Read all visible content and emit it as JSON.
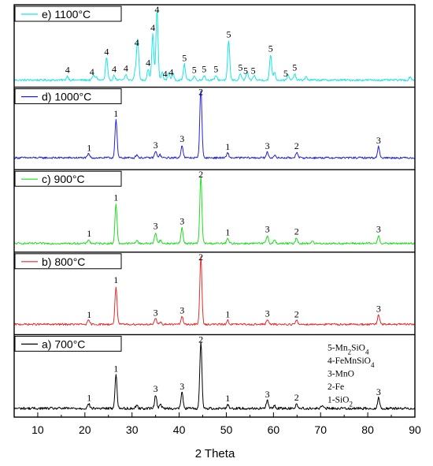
{
  "chart_data": {
    "type": "line",
    "xlabel": "2 Theta",
    "xlim": [
      5,
      90
    ],
    "x_ticks": [
      10,
      20,
      30,
      40,
      50,
      60,
      70,
      80,
      90
    ],
    "key_lines": [
      {
        "num": "5",
        "sep": "-",
        "parts": [
          {
            "t": "Mn"
          },
          {
            "t": "2",
            "sub": true
          },
          {
            "t": "SiO"
          },
          {
            "t": "4",
            "sub": true
          }
        ]
      },
      {
        "num": "4",
        "sep": "-",
        "parts": [
          {
            "t": "FeMnSiO"
          },
          {
            "t": "4",
            "sub": true
          }
        ]
      },
      {
        "num": "3",
        "sep": "-",
        "parts": [
          {
            "t": "MnO"
          }
        ]
      },
      {
        "num": "2",
        "sep": "-",
        "parts": [
          {
            "t": "Fe"
          }
        ]
      },
      {
        "num": "1",
        "sep": "-",
        "parts": [
          {
            "t": "SiO"
          },
          {
            "t": "2",
            "sub": true
          }
        ]
      }
    ],
    "series": [
      {
        "name": "e) 1100°C",
        "color": "#19e6e6",
        "baseline": 0.08,
        "noise": 0.012,
        "peaks": [
          [
            16.3,
            0.05
          ],
          [
            21.8,
            0.06
          ],
          [
            22.4,
            0.04
          ],
          [
            24.6,
            0.28
          ],
          [
            26.2,
            0.06
          ],
          [
            28.7,
            0.07
          ],
          [
            30.7,
            0.12
          ],
          [
            31.2,
            0.52
          ],
          [
            33.4,
            0.14
          ],
          [
            34.4,
            0.58
          ],
          [
            35.3,
            0.88
          ],
          [
            36.4,
            0.1
          ],
          [
            37.8,
            0.1
          ],
          [
            38.7,
            0.08
          ],
          [
            41.1,
            0.2
          ],
          [
            43.2,
            0.05
          ],
          [
            45.3,
            0.06
          ],
          [
            47.8,
            0.06
          ],
          [
            50.5,
            0.5
          ],
          [
            53.0,
            0.08
          ],
          [
            54.4,
            0.1
          ],
          [
            55.9,
            0.06
          ],
          [
            59.4,
            0.32
          ],
          [
            60.2,
            0.1
          ],
          [
            63.1,
            0.06
          ],
          [
            64.5,
            0.08
          ],
          [
            66.9,
            0.04
          ],
          [
            89.0,
            0.04
          ]
        ],
        "labels": [
          [
            16.3,
            "4"
          ],
          [
            21.5,
            "4"
          ],
          [
            24.6,
            "4"
          ],
          [
            26.2,
            "4"
          ],
          [
            28.7,
            "4"
          ],
          [
            31.0,
            "4"
          ],
          [
            33.4,
            "4"
          ],
          [
            34.4,
            "4"
          ],
          [
            35.3,
            "4"
          ],
          [
            37.0,
            "4"
          ],
          [
            38.3,
            "4"
          ],
          [
            41.1,
            "5"
          ],
          [
            43.2,
            "5"
          ],
          [
            45.3,
            "5"
          ],
          [
            47.8,
            "5"
          ],
          [
            50.5,
            "5"
          ],
          [
            53.0,
            "5"
          ],
          [
            54.1,
            "5"
          ],
          [
            55.7,
            "5"
          ],
          [
            59.4,
            "5"
          ],
          [
            62.6,
            "5"
          ],
          [
            64.5,
            "5"
          ]
        ]
      },
      {
        "name": "d) 1000°C",
        "color": "#2323d8",
        "baseline": 0.14,
        "noise": 0.012,
        "peaks": [
          [
            20.8,
            0.05
          ],
          [
            26.6,
            0.48
          ],
          [
            31.0,
            0.04
          ],
          [
            35.0,
            0.08
          ],
          [
            35.9,
            0.04
          ],
          [
            40.6,
            0.16
          ],
          [
            44.6,
            0.9
          ],
          [
            50.3,
            0.06
          ],
          [
            58.7,
            0.07
          ],
          [
            60.2,
            0.03
          ],
          [
            64.9,
            0.07
          ],
          [
            82.3,
            0.14
          ]
        ],
        "labels": [
          [
            20.9,
            "1"
          ],
          [
            26.6,
            "1"
          ],
          [
            35.0,
            "3"
          ],
          [
            40.6,
            "3"
          ],
          [
            44.6,
            "2"
          ],
          [
            50.3,
            "1"
          ],
          [
            58.7,
            "3"
          ],
          [
            64.9,
            "2"
          ],
          [
            82.3,
            "3"
          ]
        ]
      },
      {
        "name": "c) 900°C",
        "color": "#1ede1e",
        "baseline": 0.1,
        "noise": 0.012,
        "peaks": [
          [
            20.8,
            0.05
          ],
          [
            26.6,
            0.5
          ],
          [
            31.0,
            0.04
          ],
          [
            35.0,
            0.14
          ],
          [
            36.0,
            0.04
          ],
          [
            40.6,
            0.2
          ],
          [
            44.6,
            0.85
          ],
          [
            50.3,
            0.06
          ],
          [
            58.7,
            0.1
          ],
          [
            60.2,
            0.04
          ],
          [
            64.9,
            0.07
          ],
          [
            68.2,
            0.03
          ],
          [
            82.3,
            0.1
          ]
        ],
        "labels": [
          [
            20.9,
            "1"
          ],
          [
            26.6,
            "1"
          ],
          [
            35.0,
            "3"
          ],
          [
            40.6,
            "3"
          ],
          [
            44.6,
            "2"
          ],
          [
            50.3,
            "1"
          ],
          [
            58.7,
            "3"
          ],
          [
            64.9,
            "2"
          ],
          [
            82.3,
            "3"
          ]
        ]
      },
      {
        "name": "b) 800°C",
        "color": "#e62a2a",
        "baseline": 0.12,
        "noise": 0.012,
        "peaks": [
          [
            20.8,
            0.05
          ],
          [
            26.6,
            0.48
          ],
          [
            35.0,
            0.07
          ],
          [
            36.0,
            0.03
          ],
          [
            40.6,
            0.1
          ],
          [
            44.6,
            0.85
          ],
          [
            50.3,
            0.05
          ],
          [
            58.7,
            0.06
          ],
          [
            64.9,
            0.05
          ],
          [
            82.3,
            0.12
          ]
        ],
        "labels": [
          [
            20.9,
            "1"
          ],
          [
            26.6,
            "1"
          ],
          [
            35.0,
            "3"
          ],
          [
            40.6,
            "3"
          ],
          [
            44.6,
            "2"
          ],
          [
            50.3,
            "1"
          ],
          [
            58.7,
            "3"
          ],
          [
            64.9,
            "2"
          ],
          [
            82.3,
            "3"
          ]
        ]
      },
      {
        "name": "a) 700°C",
        "color": "#000000",
        "baseline": 0.1,
        "noise": 0.016,
        "peaks": [
          [
            20.8,
            0.06
          ],
          [
            26.6,
            0.42
          ],
          [
            31.0,
            0.04
          ],
          [
            35.0,
            0.17
          ],
          [
            36.0,
            0.06
          ],
          [
            40.6,
            0.2
          ],
          [
            44.6,
            0.85
          ],
          [
            50.3,
            0.05
          ],
          [
            58.7,
            0.1
          ],
          [
            60.2,
            0.04
          ],
          [
            64.9,
            0.06
          ],
          [
            70.3,
            0.03
          ],
          [
            82.3,
            0.13
          ]
        ],
        "labels": [
          [
            20.9,
            "1"
          ],
          [
            26.6,
            "1"
          ],
          [
            35.0,
            "3"
          ],
          [
            40.6,
            "3"
          ],
          [
            44.6,
            "2"
          ],
          [
            50.3,
            "1"
          ],
          [
            58.7,
            "3"
          ],
          [
            64.9,
            "2"
          ],
          [
            82.3,
            "3"
          ]
        ]
      }
    ]
  }
}
